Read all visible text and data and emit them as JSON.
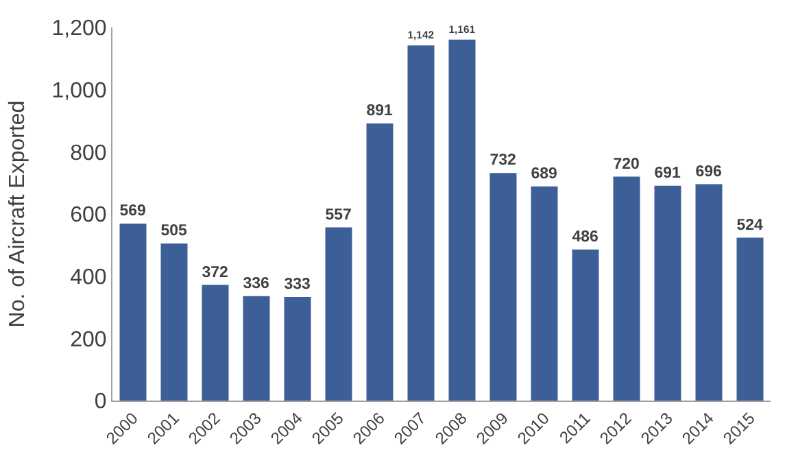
{
  "chart_data": {
    "type": "bar",
    "ylabel": "No. of Aircraft Exported",
    "categories": [
      "2000",
      "2001",
      "2002",
      "2003",
      "2004",
      "2005",
      "2006",
      "2007",
      "2008",
      "2009",
      "2010",
      "2011",
      "2012",
      "2013",
      "2014",
      "2015"
    ],
    "values": [
      569,
      505,
      372,
      336,
      333,
      557,
      891,
      1142,
      1161,
      732,
      689,
      486,
      720,
      691,
      696,
      524
    ],
    "color": "#3b5f96",
    "value_labels": [
      "569",
      "505",
      "372",
      "336",
      "333",
      "557",
      "891",
      "1,142",
      "1,161",
      "732",
      "689",
      "486",
      "720",
      "691",
      "696",
      "524"
    ],
    "ylim": [
      0,
      1200
    ],
    "yticks": [
      0,
      200,
      400,
      600,
      800,
      {
        "value": 1000,
        "label": "1,000"
      },
      {
        "value": 1200,
        "label": "1,200"
      }
    ],
    "grid": false
  }
}
